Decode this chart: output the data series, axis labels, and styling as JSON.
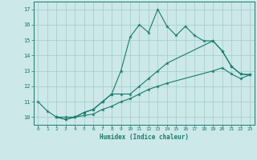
{
  "xlabel": "Humidex (Indice chaleur)",
  "bg_color": "#cce8e8",
  "grid_color": "#a8cfcf",
  "line_color": "#1a7a6e",
  "xlim": [
    -0.5,
    23.5
  ],
  "ylim": [
    9.5,
    17.5
  ],
  "yticks": [
    10,
    11,
    12,
    13,
    14,
    15,
    16,
    17
  ],
  "xticks": [
    0,
    1,
    2,
    3,
    4,
    5,
    6,
    7,
    8,
    9,
    10,
    11,
    12,
    13,
    14,
    15,
    16,
    17,
    18,
    19,
    20,
    21,
    22,
    23
  ],
  "line1_x": [
    0,
    1,
    2,
    3,
    4,
    5,
    6,
    7,
    8,
    9,
    10,
    11,
    12,
    13,
    14,
    15,
    16,
    17,
    18,
    19,
    20,
    21,
    22,
    23
  ],
  "line1_y": [
    11.0,
    10.4,
    10.0,
    9.85,
    10.0,
    10.3,
    10.5,
    11.0,
    11.5,
    13.0,
    15.2,
    16.0,
    15.5,
    17.0,
    15.9,
    15.3,
    15.9,
    15.3,
    14.95,
    14.95,
    14.3,
    13.3,
    12.8,
    12.75
  ],
  "line2_x": [
    2,
    3,
    4,
    5,
    6,
    7,
    8,
    9,
    10,
    11,
    12,
    13,
    14,
    19,
    20,
    21,
    22,
    23
  ],
  "line2_y": [
    10.0,
    10.0,
    10.0,
    10.3,
    10.5,
    11.0,
    11.5,
    11.5,
    11.5,
    12.0,
    12.5,
    13.0,
    13.5,
    14.95,
    14.3,
    13.3,
    12.8,
    12.75
  ],
  "line3_x": [
    2,
    3,
    4,
    5,
    6,
    7,
    8,
    9,
    10,
    11,
    12,
    13,
    14,
    19,
    20,
    21,
    22,
    23
  ],
  "line3_y": [
    10.0,
    9.85,
    10.0,
    10.1,
    10.2,
    10.5,
    10.7,
    11.0,
    11.2,
    11.5,
    11.8,
    12.0,
    12.2,
    13.0,
    13.2,
    12.8,
    12.5,
    12.75
  ]
}
